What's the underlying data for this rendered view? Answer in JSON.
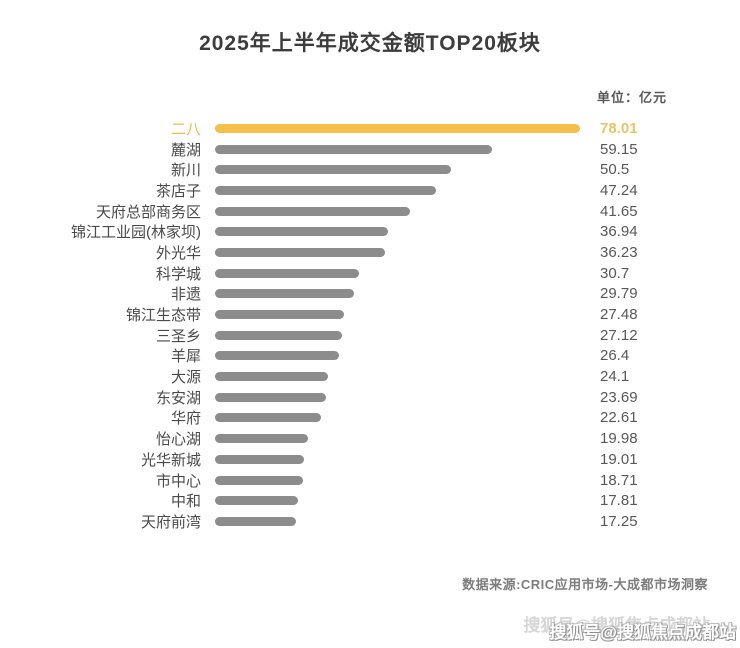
{
  "title": "2025年上半年成交金额TOP20板块",
  "unit_label": "单位：亿元",
  "source": "数据来源:CRIC应用市场-大成都市场洞察",
  "watermark": "搜狐号@搜狐焦点成都站",
  "colors": {
    "highlight_bar": "#f6be4a",
    "highlight_text": "#e9bd52",
    "bar": "#8c8c8c",
    "label_text": "#4a4a4a",
    "title_text": "#3c3c3c",
    "background": "#ffffff"
  },
  "chart_data": {
    "type": "bar",
    "orientation": "horizontal",
    "title": "2025年上半年成交金额TOP20板块",
    "unit": "亿元",
    "categories": [
      "二八",
      "麓湖",
      "新川",
      "茶店子",
      "天府总部商务区",
      "锦江工业园(林家坝)",
      "外光华",
      "科学城",
      "非遗",
      "锦江生态带",
      "三圣乡",
      "羊犀",
      "大源",
      "东安湖",
      "华府",
      "怡心湖",
      "光华新城",
      "市中心",
      "中和",
      "天府前湾"
    ],
    "values": [
      78.01,
      59.15,
      50.5,
      47.24,
      41.65,
      36.94,
      36.23,
      30.7,
      29.79,
      27.48,
      27.12,
      26.4,
      24.1,
      23.69,
      22.61,
      19.98,
      19.01,
      18.71,
      17.81,
      17.25
    ],
    "highlight_index": 0,
    "xlim": [
      0,
      78.01
    ],
    "grid": false,
    "legend": false,
    "value_labels": "right"
  }
}
